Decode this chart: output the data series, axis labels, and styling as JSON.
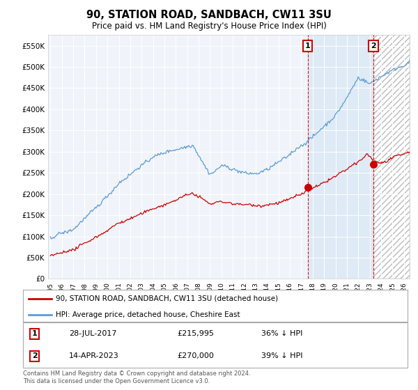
{
  "title": "90, STATION ROAD, SANDBACH, CW11 3SU",
  "subtitle": "Price paid vs. HM Land Registry's House Price Index (HPI)",
  "hpi_color": "#5b9bd5",
  "price_color": "#cc0000",
  "shaded_bg": "#dce9f5",
  "background_color": "#f0f4fa",
  "plot_bg": "#f0f4fa",
  "ylim": [
    0,
    575000
  ],
  "yticks": [
    0,
    50000,
    100000,
    150000,
    200000,
    250000,
    300000,
    350000,
    400000,
    450000,
    500000,
    550000
  ],
  "legend_label_price": "90, STATION ROAD, SANDBACH, CW11 3SU (detached house)",
  "legend_label_hpi": "HPI: Average price, detached house, Cheshire East",
  "annotation1_year": 2017.573,
  "annotation1_price": 215995,
  "annotation2_year": 2023.288,
  "annotation2_price": 270000,
  "footer": "Contains HM Land Registry data © Crown copyright and database right 2024.\nThis data is licensed under the Open Government Licence v3.0.",
  "xstart": 1994.8,
  "xend": 2026.5
}
